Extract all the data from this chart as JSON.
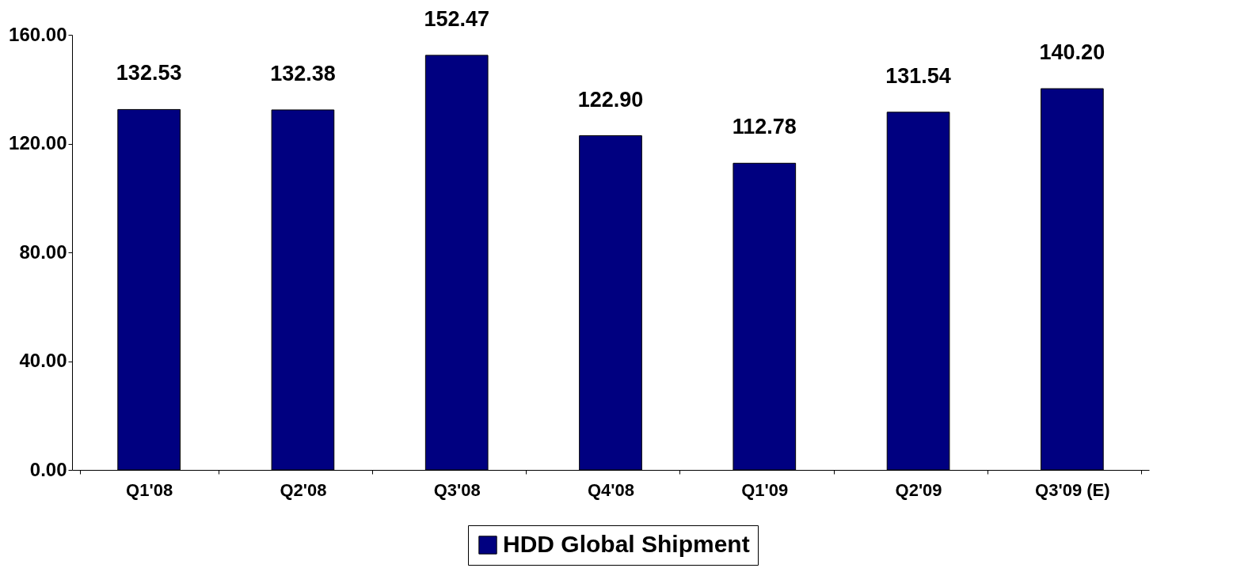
{
  "chart_data": {
    "type": "bar",
    "categories": [
      "Q1'08",
      "Q2'08",
      "Q3'08",
      "Q4'08",
      "Q1'09",
      "Q2'09",
      "Q3'09 (E)"
    ],
    "series": [
      {
        "name": "HDD Global Shipment",
        "color": "#000080",
        "values": [
          132.53,
          132.38,
          152.47,
          122.9,
          112.78,
          131.54,
          140.2
        ],
        "value_labels": [
          "132.53",
          "132.38",
          "152.47",
          "122.90",
          "112.78",
          "131.54",
          "140.20"
        ]
      }
    ],
    "ylim": [
      0,
      160
    ],
    "yticks": [
      {
        "value": 0,
        "label": "0.00"
      },
      {
        "value": 40,
        "label": "40.00"
      },
      {
        "value": 80,
        "label": "80.00"
      },
      {
        "value": 120,
        "label": "120.00"
      },
      {
        "value": 160,
        "label": "160.00"
      }
    ],
    "grid": false,
    "legend": "bottom"
  }
}
